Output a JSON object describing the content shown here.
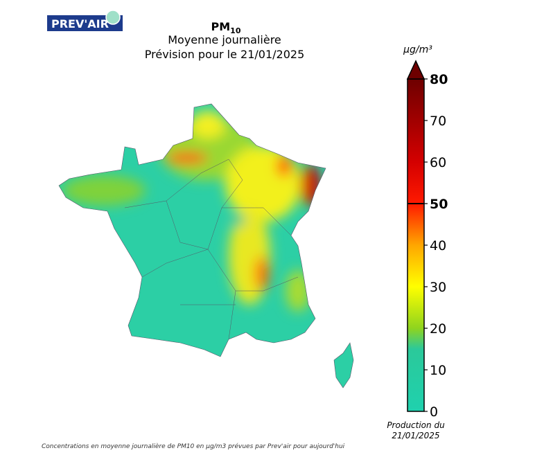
{
  "header": {
    "logo": "PREV'AIR",
    "title": {
      "text": "PM",
      "subscript": "10"
    },
    "subtitle": "Moyenne journalière",
    "forecast": "Prévision pour le 21/01/2025"
  },
  "colorbar": {
    "unit": "µg/m³",
    "range": [
      0,
      80
    ],
    "ticks": [
      0,
      10,
      20,
      30,
      40,
      50,
      60,
      70,
      80
    ],
    "emphasized_ticks": [
      50,
      80
    ],
    "threshold": 50,
    "stops": [
      {
        "value": 0,
        "color": "#1fd1ae"
      },
      {
        "value": 15,
        "color": "#2bc99a"
      },
      {
        "value": 20,
        "color": "#8fd41e"
      },
      {
        "value": 30,
        "color": "#ffff00"
      },
      {
        "value": 40,
        "color": "#ffa600"
      },
      {
        "value": 50,
        "color": "#ff1a00"
      },
      {
        "value": 60,
        "color": "#d40000"
      },
      {
        "value": 80,
        "color": "#6e0000"
      }
    ],
    "production": [
      "Production du",
      "21/01/2025"
    ]
  },
  "footer": "Concentrations en moyenne journalière de PM10 en µg/m3 prévues par Prev'air pour aujourd'hui"
}
